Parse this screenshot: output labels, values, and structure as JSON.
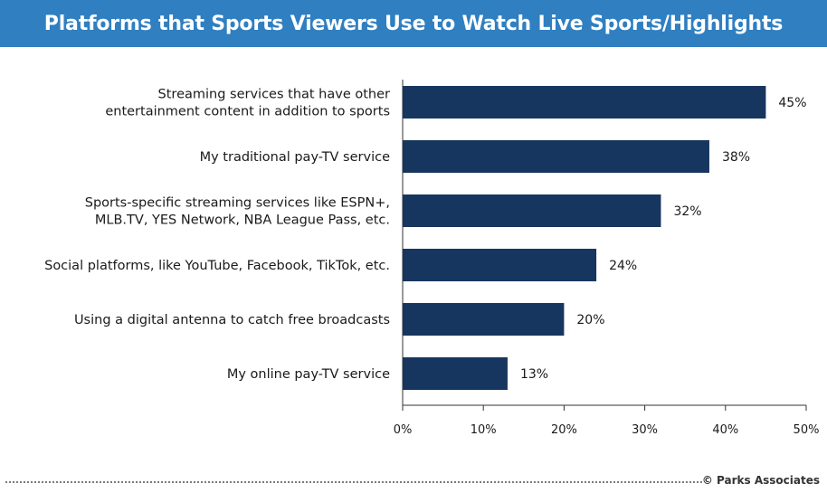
{
  "title": "Platforms that Sports Viewers Use to Watch Live Sports/Highlights",
  "credit": "© Parks Associates",
  "colors": {
    "title_bg": "#2f7fc1",
    "bar": "#17365f",
    "axis": "#333333"
  },
  "chart_data": {
    "type": "bar",
    "orientation": "horizontal",
    "categories": [
      [
        "Streaming services that have other",
        "entertainment content in addition to sports"
      ],
      [
        "My traditional pay-TV service"
      ],
      [
        "Sports-specific streaming services like ESPN+,",
        "MLB.TV, YES Network, NBA League Pass, etc."
      ],
      [
        "Social platforms, like YouTube, Facebook, TikTok, etc."
      ],
      [
        "Using a digital antenna to catch free broadcasts"
      ],
      [
        "My online pay-TV service"
      ]
    ],
    "values": [
      45,
      38,
      32,
      24,
      20,
      13
    ],
    "value_labels": [
      "45%",
      "38%",
      "32%",
      "24%",
      "20%",
      "13%"
    ],
    "xlim": [
      0,
      50
    ],
    "xticks": [
      0,
      10,
      20,
      30,
      40,
      50
    ],
    "xtick_labels": [
      "0%",
      "10%",
      "20%",
      "30%",
      "40%",
      "50%"
    ],
    "grid": false,
    "legend": "none"
  }
}
